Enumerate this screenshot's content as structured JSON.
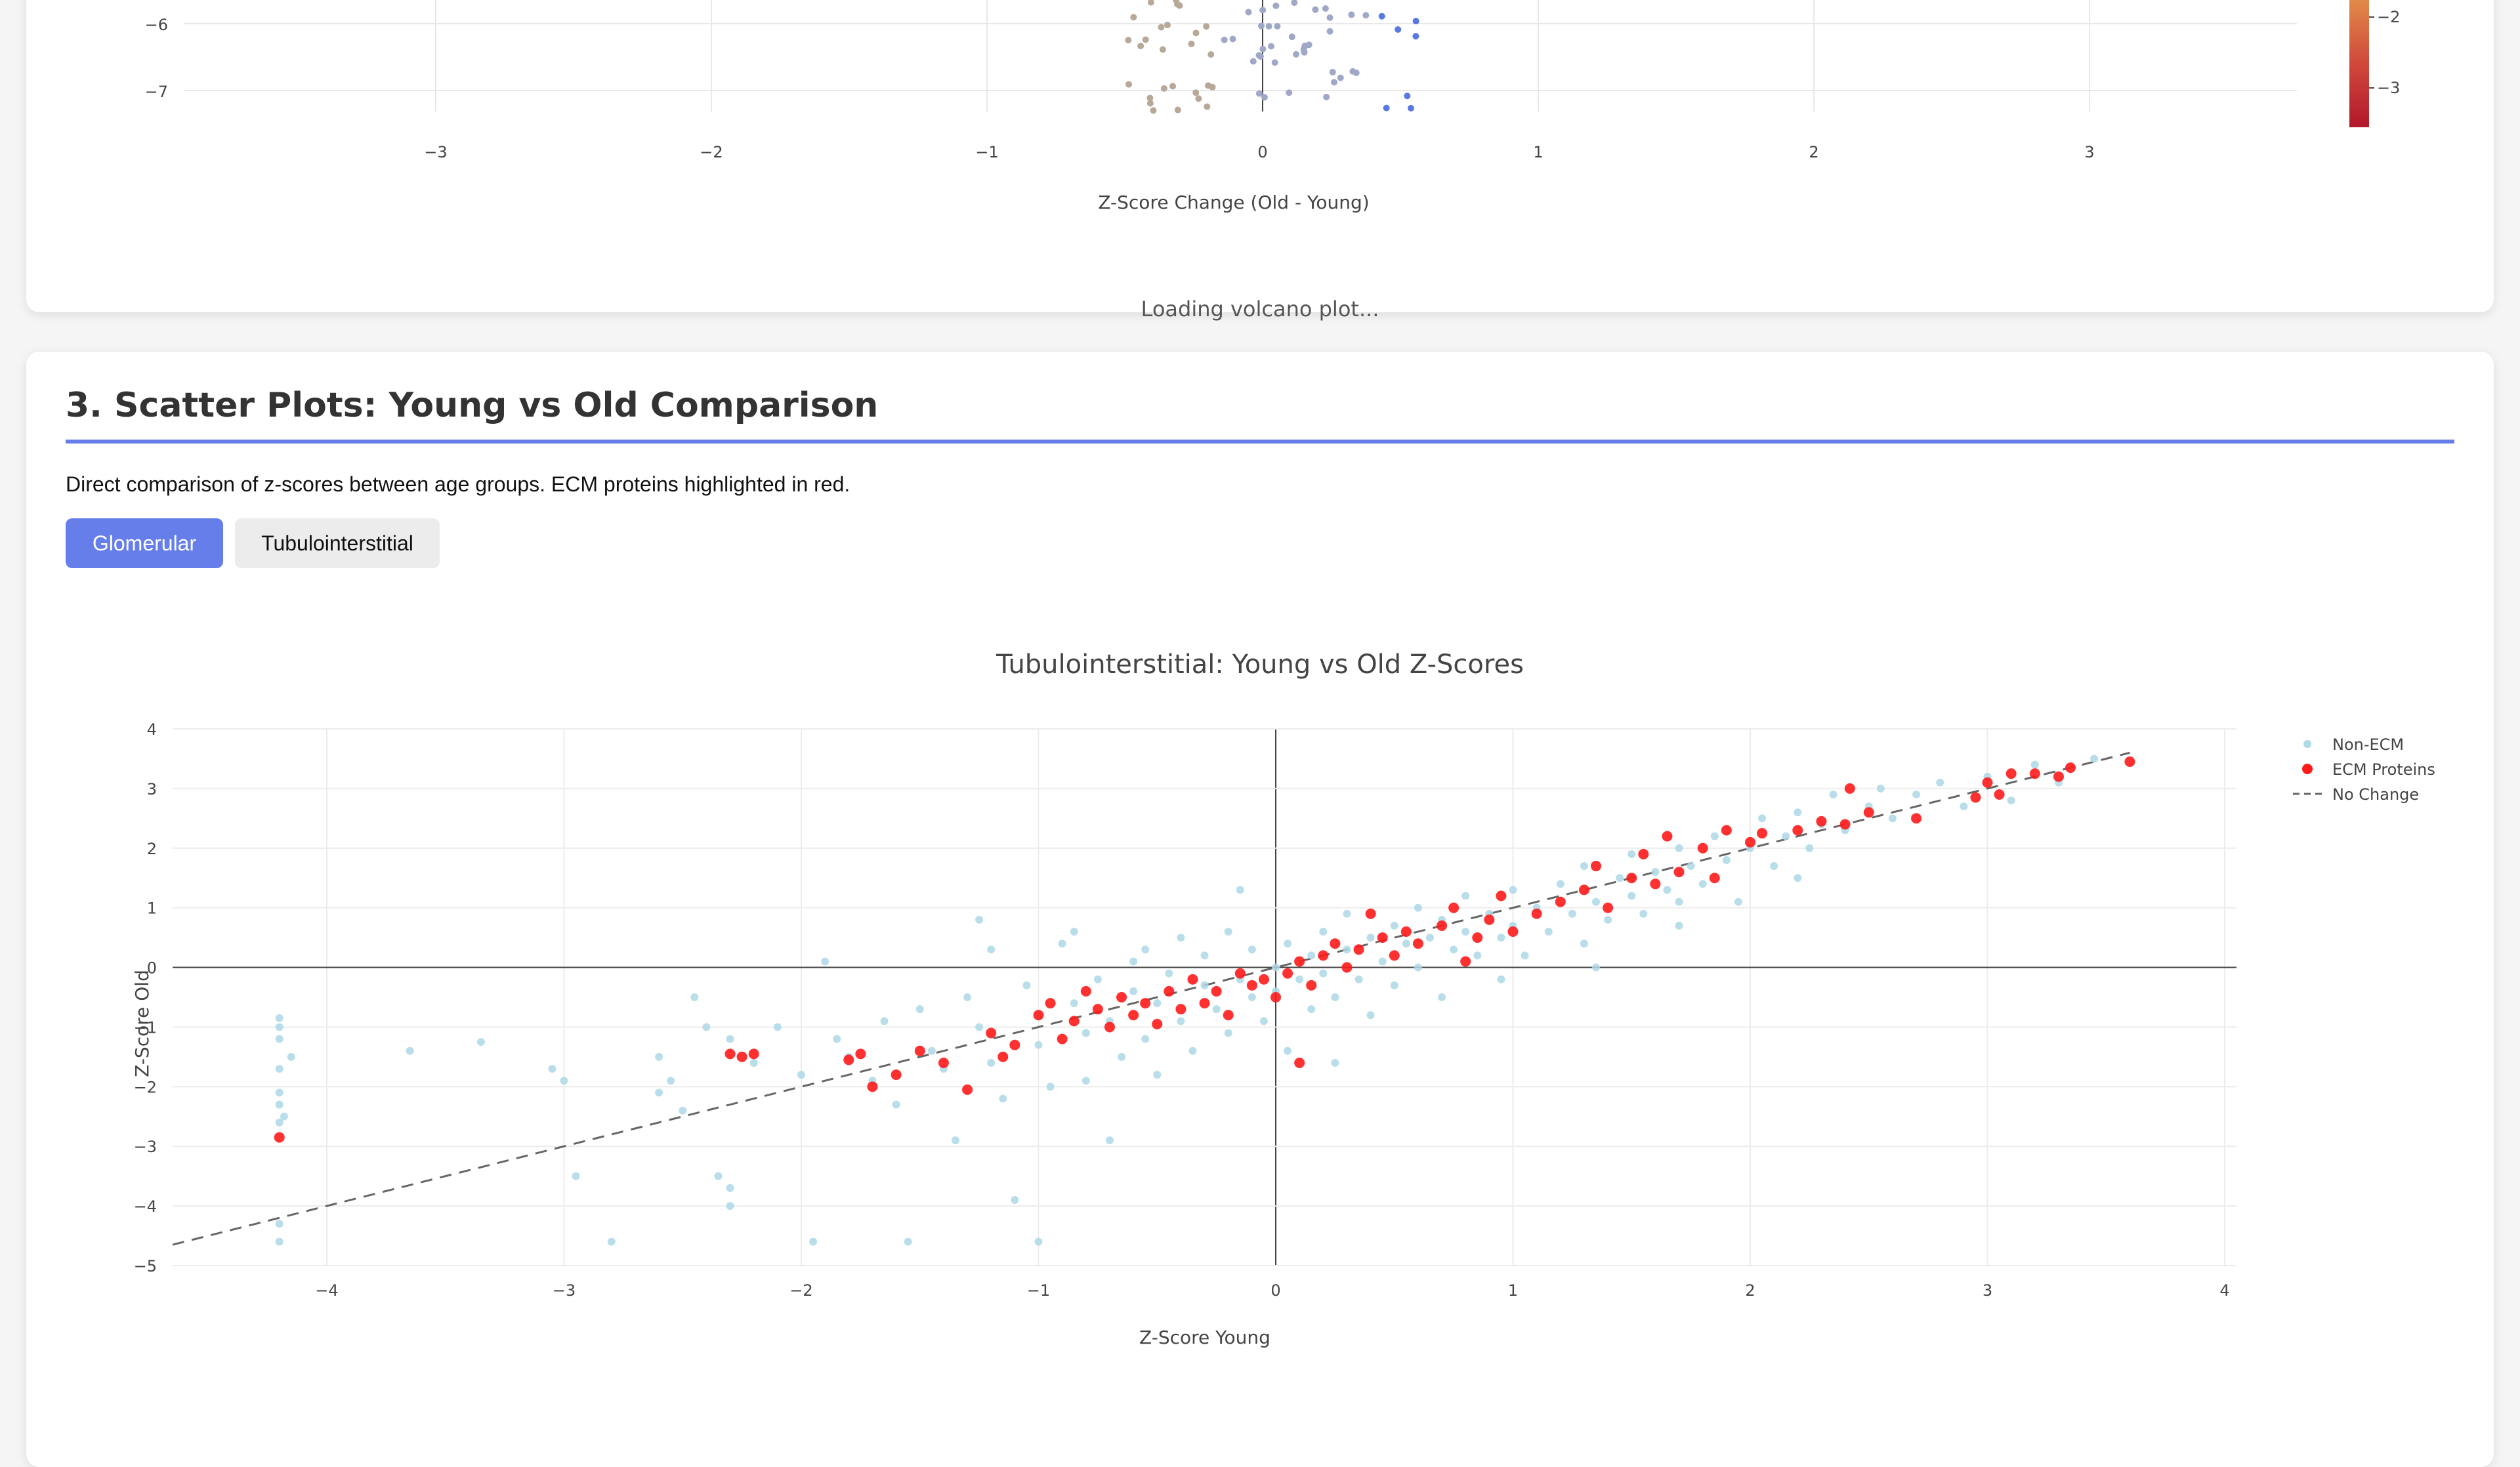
{
  "volcano": {
    "xlabel": "Z-Score Change (Old - Young)",
    "x_ticks": [
      "−3",
      "−2",
      "−1",
      "0",
      "1",
      "2",
      "3"
    ],
    "y_ticks": [
      "−6",
      "−7"
    ],
    "colorbar_ticks": [
      "−2",
      "−3"
    ],
    "loading_text": "Loading volcano plot..."
  },
  "scatter_section": {
    "title": "3. Scatter Plots: Young vs Old Comparison",
    "description": "Direct comparison of z-scores between age groups. ECM proteins highlighted in red.",
    "tabs": [
      {
        "label": "Glomerular",
        "active": true
      },
      {
        "label": "Tubulointerstitial",
        "active": false
      }
    ]
  },
  "colors": {
    "accent": "#667eea",
    "ecm": "#ff1a1a",
    "non_ecm": "#add8e6",
    "no_change_line": "#666666"
  },
  "chart_data": [
    {
      "type": "scatter",
      "title": "",
      "xlabel": "Z-Score Change (Old - Young)",
      "ylabel": "",
      "xlim": [
        -3.8,
        3.8
      ],
      "ylim": [
        -7.5,
        -5.4
      ],
      "note": "volcano plot, partially scrolled out of view; only bottom portion visible",
      "colorbar": {
        "ticks": [
          -2,
          -3
        ],
        "colorscale": "red-to-orange"
      },
      "series": []
    },
    {
      "type": "scatter",
      "title": "Tubulointerstitial: Young vs Old Z-Scores",
      "xlabel": "Z-Score Young",
      "ylabel": "Z-Score Old",
      "xlim": [
        -4.65,
        4.05
      ],
      "ylim": [
        -5,
        4
      ],
      "x_ticks": [
        "−4",
        "−3",
        "−2",
        "−1",
        "0",
        "1",
        "2",
        "3",
        "4"
      ],
      "y_ticks": [
        "4",
        "3",
        "2",
        "1",
        "0",
        "−1",
        "−2",
        "−3",
        "−4",
        "−5"
      ],
      "x_tick_values": [
        -4,
        -3,
        -2,
        -1,
        0,
        1,
        2,
        3,
        4
      ],
      "y_tick_values": [
        4,
        3,
        2,
        1,
        0,
        -1,
        -2,
        -3,
        -4,
        -5
      ],
      "grid": true,
      "legend_position": "top-right",
      "legend": [
        "Non-ECM",
        "ECM Proteins",
        "No Change"
      ],
      "series": [
        {
          "name": "Non-ECM",
          "color": "#add8e6",
          "points": [
            [
              -4.2,
              -0.85
            ],
            [
              -4.2,
              -1.0
            ],
            [
              -4.2,
              -1.2
            ],
            [
              -4.15,
              -1.5
            ],
            [
              -4.2,
              -1.7
            ],
            [
              -4.2,
              -2.1
            ],
            [
              -4.2,
              -2.3
            ],
            [
              -4.18,
              -2.5
            ],
            [
              -4.2,
              -2.6
            ],
            [
              -4.2,
              -4.3
            ],
            [
              -4.2,
              -4.6
            ],
            [
              -3.65,
              -1.4
            ],
            [
              -3.35,
              -1.25
            ],
            [
              -3.05,
              -1.7
            ],
            [
              -3.0,
              -1.9
            ],
            [
              -2.95,
              -3.5
            ],
            [
              -2.8,
              -4.6
            ],
            [
              -2.6,
              -1.5
            ],
            [
              -2.55,
              -1.9
            ],
            [
              -2.6,
              -2.1
            ],
            [
              -2.5,
              -2.4
            ],
            [
              -2.45,
              -0.5
            ],
            [
              -2.4,
              -1.0
            ],
            [
              -2.35,
              -3.5
            ],
            [
              -2.3,
              -3.7
            ],
            [
              -2.3,
              -4.0
            ],
            [
              -2.3,
              -1.2
            ],
            [
              -2.2,
              -1.6
            ],
            [
              -2.1,
              -1.0
            ],
            [
              -2.0,
              -1.8
            ],
            [
              -1.95,
              -4.6
            ],
            [
              -1.9,
              0.1
            ],
            [
              -1.85,
              -1.2
            ],
            [
              -1.8,
              -1.5
            ],
            [
              -1.7,
              -1.9
            ],
            [
              -1.65,
              -0.9
            ],
            [
              -1.6,
              -2.3
            ],
            [
              -1.55,
              -4.6
            ],
            [
              -1.5,
              -0.7
            ],
            [
              -1.45,
              -1.4
            ],
            [
              -1.4,
              -1.7
            ],
            [
              -1.35,
              -2.9
            ],
            [
              -1.3,
              -0.5
            ],
            [
              -1.25,
              0.8
            ],
            [
              -1.25,
              -1.0
            ],
            [
              -1.2,
              0.3
            ],
            [
              -1.2,
              -1.6
            ],
            [
              -1.15,
              -2.2
            ],
            [
              -1.1,
              -3.9
            ],
            [
              -1.05,
              -0.3
            ],
            [
              -1.0,
              -0.8
            ],
            [
              -1.0,
              -1.3
            ],
            [
              -1.0,
              -4.6
            ],
            [
              -0.95,
              -2.0
            ],
            [
              -0.9,
              0.4
            ],
            [
              -0.85,
              -0.6
            ],
            [
              -0.8,
              -1.1
            ],
            [
              -0.8,
              -1.9
            ],
            [
              -0.75,
              -0.2
            ],
            [
              -0.7,
              -2.9
            ],
            [
              -0.7,
              -0.9
            ],
            [
              -0.65,
              -1.5
            ],
            [
              -0.6,
              0.1
            ],
            [
              -0.6,
              -0.4
            ],
            [
              -0.55,
              -1.2
            ],
            [
              -0.5,
              -0.6
            ],
            [
              -0.5,
              -1.8
            ],
            [
              -0.45,
              -0.1
            ],
            [
              -0.4,
              0.5
            ],
            [
              -0.4,
              -0.9
            ],
            [
              -0.35,
              -1.4
            ],
            [
              -0.3,
              -0.3
            ],
            [
              -0.3,
              0.2
            ],
            [
              -0.25,
              -0.7
            ],
            [
              -0.2,
              -1.1
            ],
            [
              -0.2,
              0.6
            ],
            [
              -0.15,
              -0.2
            ],
            [
              -0.1,
              -0.5
            ],
            [
              -0.1,
              0.3
            ],
            [
              -0.05,
              -0.9
            ],
            [
              0.0,
              0.0
            ],
            [
              0.0,
              -0.4
            ],
            [
              0.05,
              0.4
            ],
            [
              0.05,
              -1.4
            ],
            [
              0.1,
              -0.2
            ],
            [
              0.15,
              0.2
            ],
            [
              0.15,
              -0.7
            ],
            [
              0.2,
              0.6
            ],
            [
              0.2,
              -0.1
            ],
            [
              0.25,
              -0.5
            ],
            [
              0.3,
              0.3
            ],
            [
              0.3,
              0.9
            ],
            [
              0.35,
              -0.2
            ],
            [
              0.4,
              0.5
            ],
            [
              0.4,
              -0.8
            ],
            [
              0.45,
              0.1
            ],
            [
              0.5,
              0.7
            ],
            [
              0.5,
              -0.3
            ],
            [
              0.55,
              0.4
            ],
            [
              0.6,
              1.0
            ],
            [
              0.6,
              0.0
            ],
            [
              0.65,
              0.5
            ],
            [
              0.7,
              -0.5
            ],
            [
              0.7,
              0.8
            ],
            [
              0.75,
              0.3
            ],
            [
              0.8,
              1.2
            ],
            [
              0.8,
              0.6
            ],
            [
              0.85,
              0.2
            ],
            [
              0.9,
              0.9
            ],
            [
              0.95,
              0.5
            ],
            [
              1.0,
              1.3
            ],
            [
              1.0,
              0.7
            ],
            [
              1.05,
              0.2
            ],
            [
              1.1,
              1.0
            ],
            [
              1.15,
              0.6
            ],
            [
              1.2,
              1.4
            ],
            [
              1.25,
              0.9
            ],
            [
              1.3,
              1.7
            ],
            [
              1.3,
              0.4
            ],
            [
              1.35,
              1.1
            ],
            [
              1.4,
              0.8
            ],
            [
              1.45,
              1.5
            ],
            [
              1.5,
              1.2
            ],
            [
              1.5,
              1.9
            ],
            [
              1.55,
              0.9
            ],
            [
              1.6,
              1.6
            ],
            [
              1.65,
              1.3
            ],
            [
              1.7,
              2.0
            ],
            [
              1.7,
              1.1
            ],
            [
              1.75,
              1.7
            ],
            [
              1.8,
              1.4
            ],
            [
              1.85,
              2.2
            ],
            [
              1.9,
              1.8
            ],
            [
              1.95,
              1.1
            ],
            [
              2.0,
              2.0
            ],
            [
              2.05,
              2.5
            ],
            [
              2.1,
              1.7
            ],
            [
              2.15,
              2.2
            ],
            [
              2.2,
              2.6
            ],
            [
              2.25,
              2.0
            ],
            [
              2.3,
              2.4
            ],
            [
              2.35,
              2.9
            ],
            [
              2.4,
              2.3
            ],
            [
              2.5,
              2.7
            ],
            [
              2.55,
              3.0
            ],
            [
              2.6,
              2.5
            ],
            [
              2.7,
              2.9
            ],
            [
              2.8,
              3.1
            ],
            [
              2.9,
              2.7
            ],
            [
              3.0,
              3.2
            ],
            [
              3.1,
              2.8
            ],
            [
              3.2,
              3.4
            ],
            [
              3.3,
              3.1
            ],
            [
              3.45,
              3.5
            ],
            [
              -0.15,
              1.3
            ],
            [
              0.25,
              -1.6
            ],
            [
              0.95,
              -0.2
            ],
            [
              1.35,
              0.0
            ],
            [
              1.7,
              0.7
            ],
            [
              2.2,
              1.5
            ],
            [
              -0.55,
              0.3
            ],
            [
              -0.85,
              0.6
            ]
          ]
        },
        {
          "name": "ECM Proteins",
          "color": "#ff1a1a",
          "points": [
            [
              -4.2,
              -2.85
            ],
            [
              -2.3,
              -1.45
            ],
            [
              -2.25,
              -1.5
            ],
            [
              -2.2,
              -1.45
            ],
            [
              -1.8,
              -1.55
            ],
            [
              -1.75,
              -1.45
            ],
            [
              -1.7,
              -2.0
            ],
            [
              -1.6,
              -1.8
            ],
            [
              -1.5,
              -1.4
            ],
            [
              -1.4,
              -1.6
            ],
            [
              -1.3,
              -2.05
            ],
            [
              -1.2,
              -1.1
            ],
            [
              -1.15,
              -1.5
            ],
            [
              -1.1,
              -1.3
            ],
            [
              -1.0,
              -0.8
            ],
            [
              -0.95,
              -0.6
            ],
            [
              -0.9,
              -1.2
            ],
            [
              -0.85,
              -0.9
            ],
            [
              -0.8,
              -0.4
            ],
            [
              -0.75,
              -0.7
            ],
            [
              -0.7,
              -1.0
            ],
            [
              -0.65,
              -0.5
            ],
            [
              -0.6,
              -0.8
            ],
            [
              -0.55,
              -0.6
            ],
            [
              -0.5,
              -0.95
            ],
            [
              -0.45,
              -0.4
            ],
            [
              -0.4,
              -0.7
            ],
            [
              -0.35,
              -0.2
            ],
            [
              -0.3,
              -0.6
            ],
            [
              -0.25,
              -0.4
            ],
            [
              -0.2,
              -0.8
            ],
            [
              -0.15,
              -0.1
            ],
            [
              -0.1,
              -0.3
            ],
            [
              -0.05,
              -0.2
            ],
            [
              0.0,
              -0.5
            ],
            [
              0.05,
              -0.1
            ],
            [
              0.1,
              0.1
            ],
            [
              0.1,
              -1.6
            ],
            [
              0.15,
              -0.3
            ],
            [
              0.2,
              0.2
            ],
            [
              0.25,
              0.4
            ],
            [
              0.3,
              0.0
            ],
            [
              0.35,
              0.3
            ],
            [
              0.4,
              0.9
            ],
            [
              0.45,
              0.5
            ],
            [
              0.5,
              0.2
            ],
            [
              0.55,
              0.6
            ],
            [
              0.6,
              0.4
            ],
            [
              0.7,
              0.7
            ],
            [
              0.75,
              1.0
            ],
            [
              0.8,
              0.1
            ],
            [
              0.85,
              0.5
            ],
            [
              0.9,
              0.8
            ],
            [
              0.95,
              1.2
            ],
            [
              1.0,
              0.6
            ],
            [
              1.1,
              0.9
            ],
            [
              1.2,
              1.1
            ],
            [
              1.3,
              1.3
            ],
            [
              1.35,
              1.7
            ],
            [
              1.4,
              1.0
            ],
            [
              1.5,
              1.5
            ],
            [
              1.55,
              1.9
            ],
            [
              1.6,
              1.4
            ],
            [
              1.65,
              2.2
            ],
            [
              1.7,
              1.6
            ],
            [
              1.8,
              2.0
            ],
            [
              1.85,
              1.5
            ],
            [
              1.9,
              2.3
            ],
            [
              2.0,
              2.1
            ],
            [
              2.05,
              2.25
            ],
            [
              2.2,
              2.3
            ],
            [
              2.3,
              2.45
            ],
            [
              2.4,
              2.4
            ],
            [
              2.42,
              3.0
            ],
            [
              2.5,
              2.6
            ],
            [
              2.7,
              2.5
            ],
            [
              2.95,
              2.85
            ],
            [
              3.0,
              3.1
            ],
            [
              3.05,
              2.9
            ],
            [
              3.1,
              3.25
            ],
            [
              3.2,
              3.25
            ],
            [
              3.3,
              3.2
            ],
            [
              3.35,
              3.35
            ],
            [
              3.6,
              3.45
            ]
          ]
        }
      ],
      "reference_line": {
        "name": "No Change",
        "from": [
          -4.65,
          -4.65
        ],
        "to": [
          3.6,
          3.6
        ],
        "style": "dashed"
      }
    }
  ]
}
